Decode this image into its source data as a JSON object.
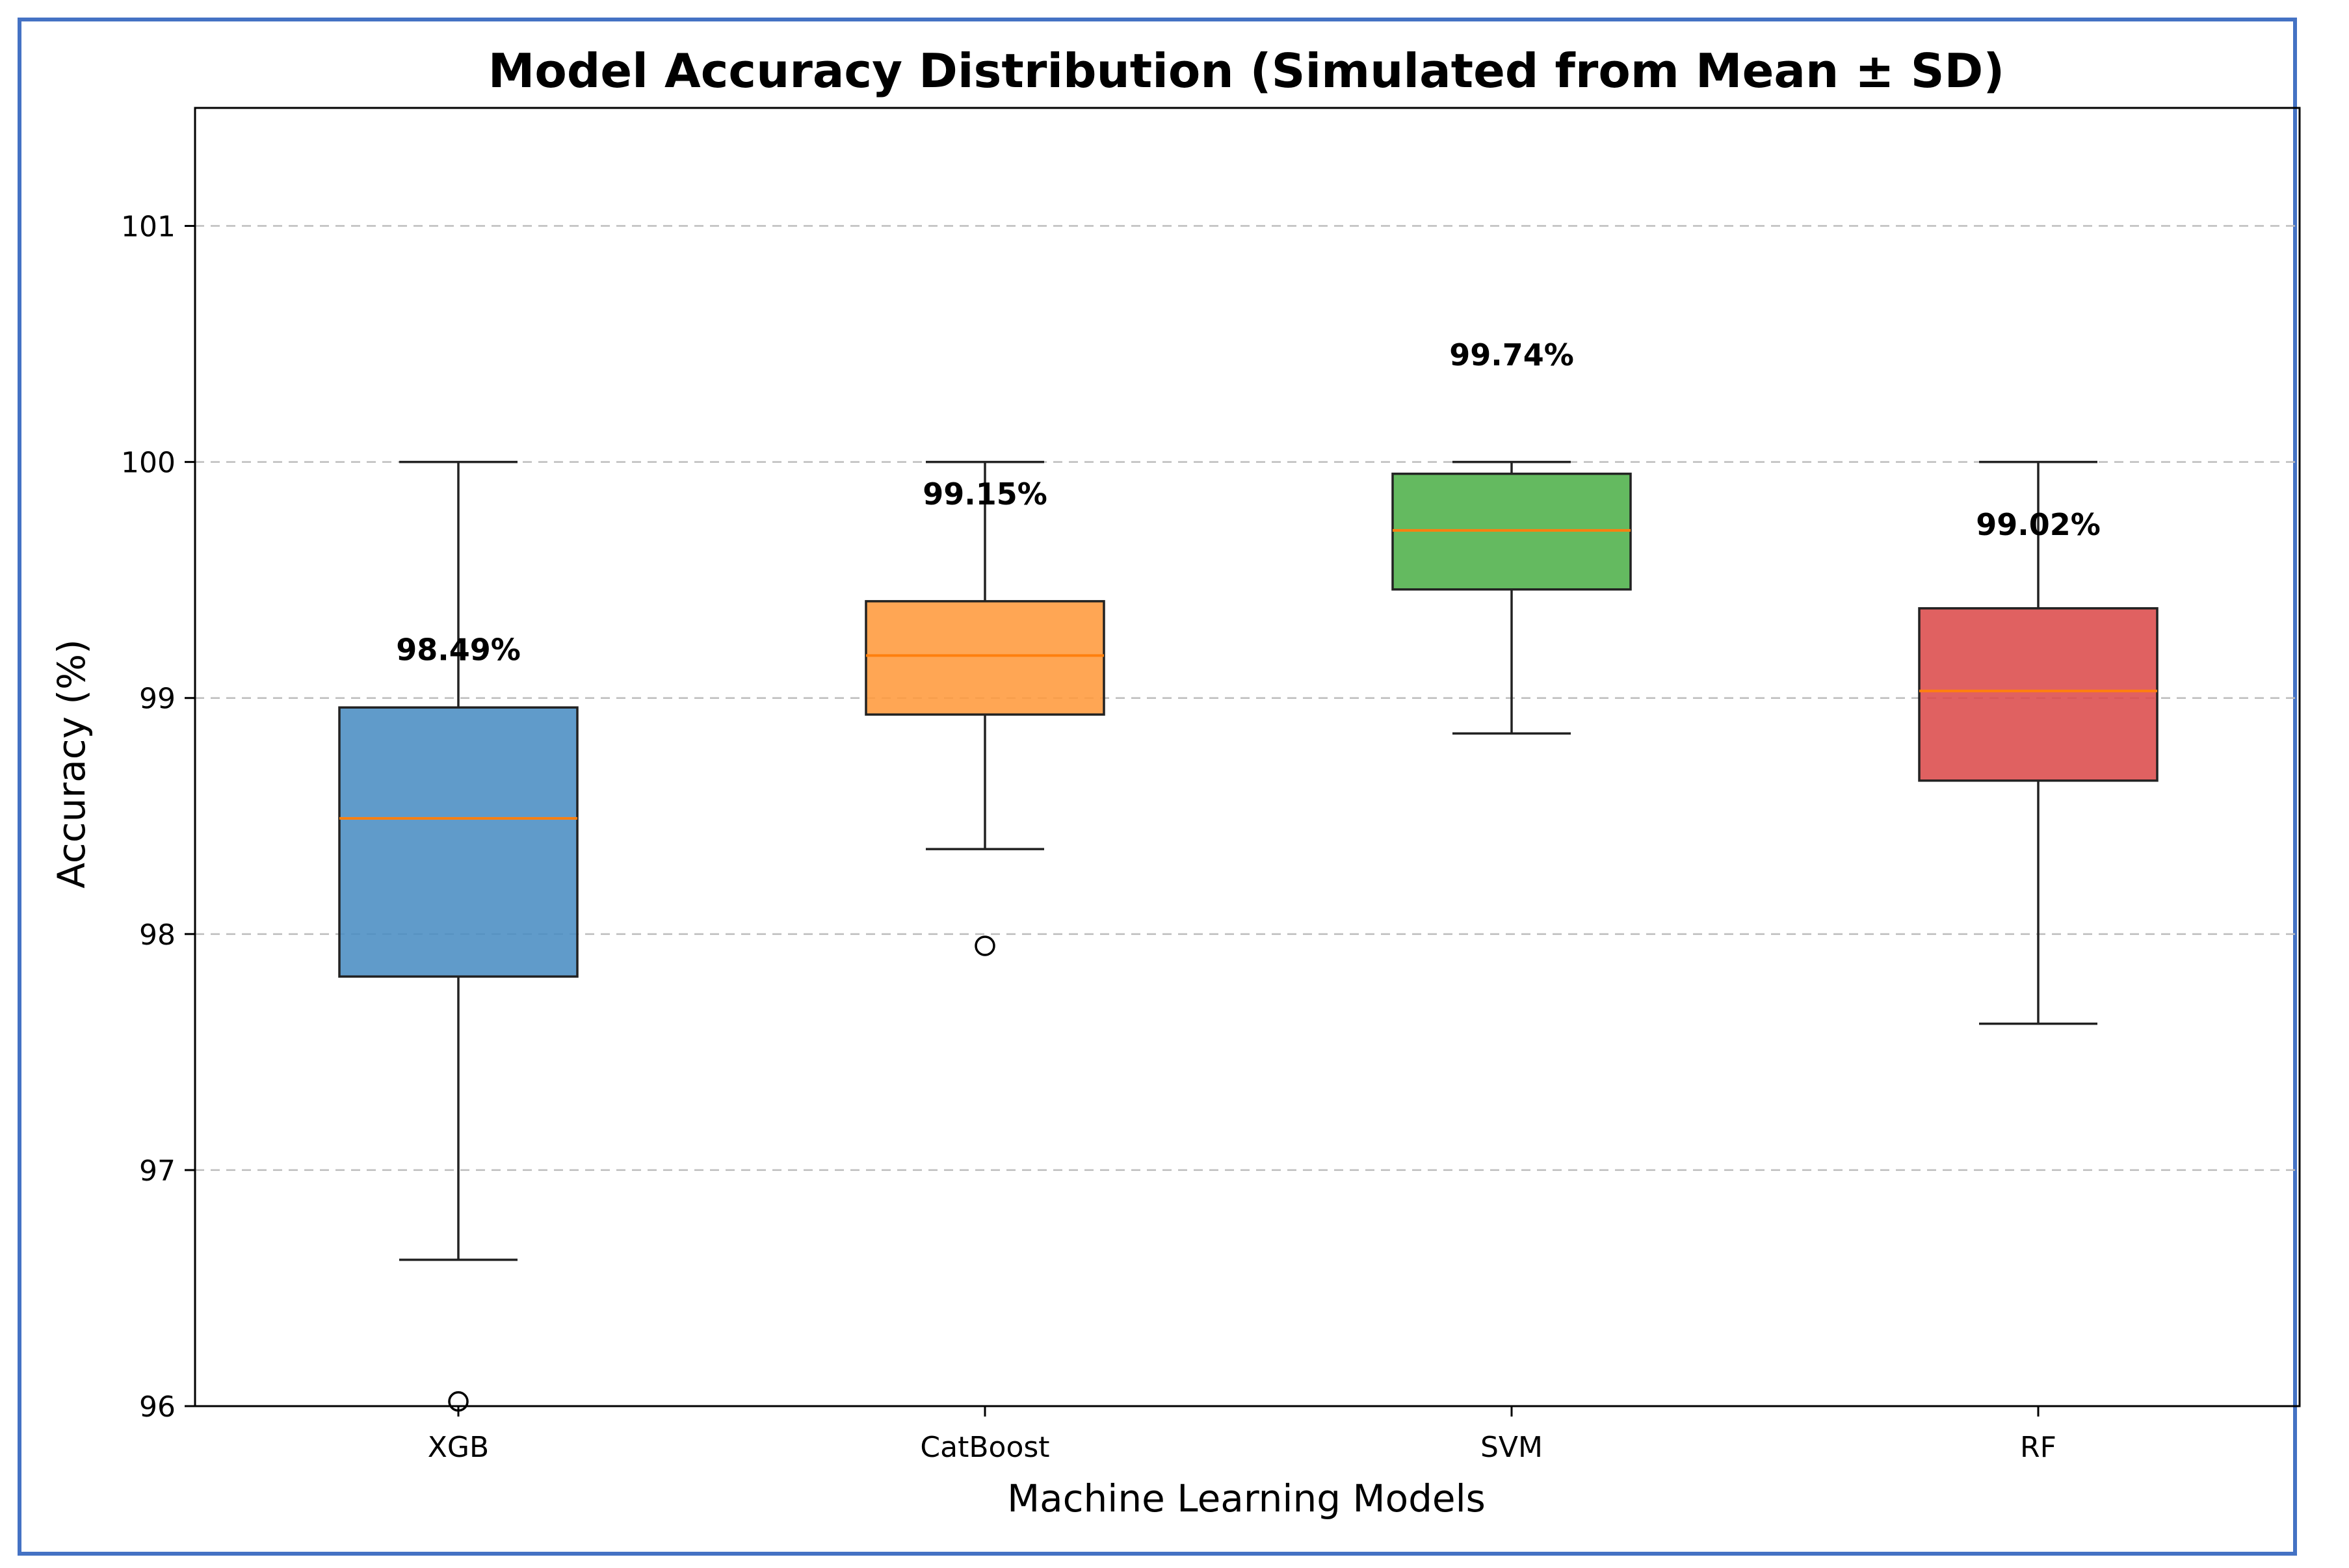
{
  "chart_data": {
    "type": "boxplot",
    "title": "Model Accuracy Distribution (Simulated from Mean ± SD)",
    "xlabel": "Machine Learning Models",
    "ylabel": "Accuracy (%)",
    "ylim": [
      96,
      101.5
    ],
    "yticks": [
      96,
      97,
      98,
      99,
      100,
      101
    ],
    "grid": "y-dashed",
    "categories": [
      "XGB",
      "CatBoost",
      "SVM",
      "RF"
    ],
    "series": [
      {
        "name": "XGB",
        "color": "#4a8dc3",
        "whisker_low": 96.62,
        "q1": 97.82,
        "median": 98.49,
        "q3": 98.96,
        "whisker_high": 100.0,
        "outliers": [
          96.02
        ],
        "label": "98.49%",
        "label_y": 99.16
      },
      {
        "name": "CatBoost",
        "color": "#ff9a3c",
        "whisker_low": 98.36,
        "q1": 98.93,
        "median": 99.18,
        "q3": 99.41,
        "whisker_high": 100.0,
        "outliers": [
          97.95
        ],
        "label": "99.15%",
        "label_y": 99.82
      },
      {
        "name": "SVM",
        "color": "#4fb04a",
        "whisker_low": 98.85,
        "q1": 99.46,
        "median": 99.71,
        "q3": 99.95,
        "whisker_high": 100.0,
        "outliers": [],
        "label": "99.74%",
        "label_y": 100.41
      },
      {
        "name": "RF",
        "color": "#dc4b4b",
        "whisker_low": 97.62,
        "q1": 98.65,
        "median": 99.03,
        "q3": 99.38,
        "whisker_high": 100.0,
        "outliers": [],
        "label": "99.02%",
        "label_y": 99.69
      }
    ],
    "median_color": "#ff7f0e",
    "frame_border_color": "#4472c4"
  }
}
